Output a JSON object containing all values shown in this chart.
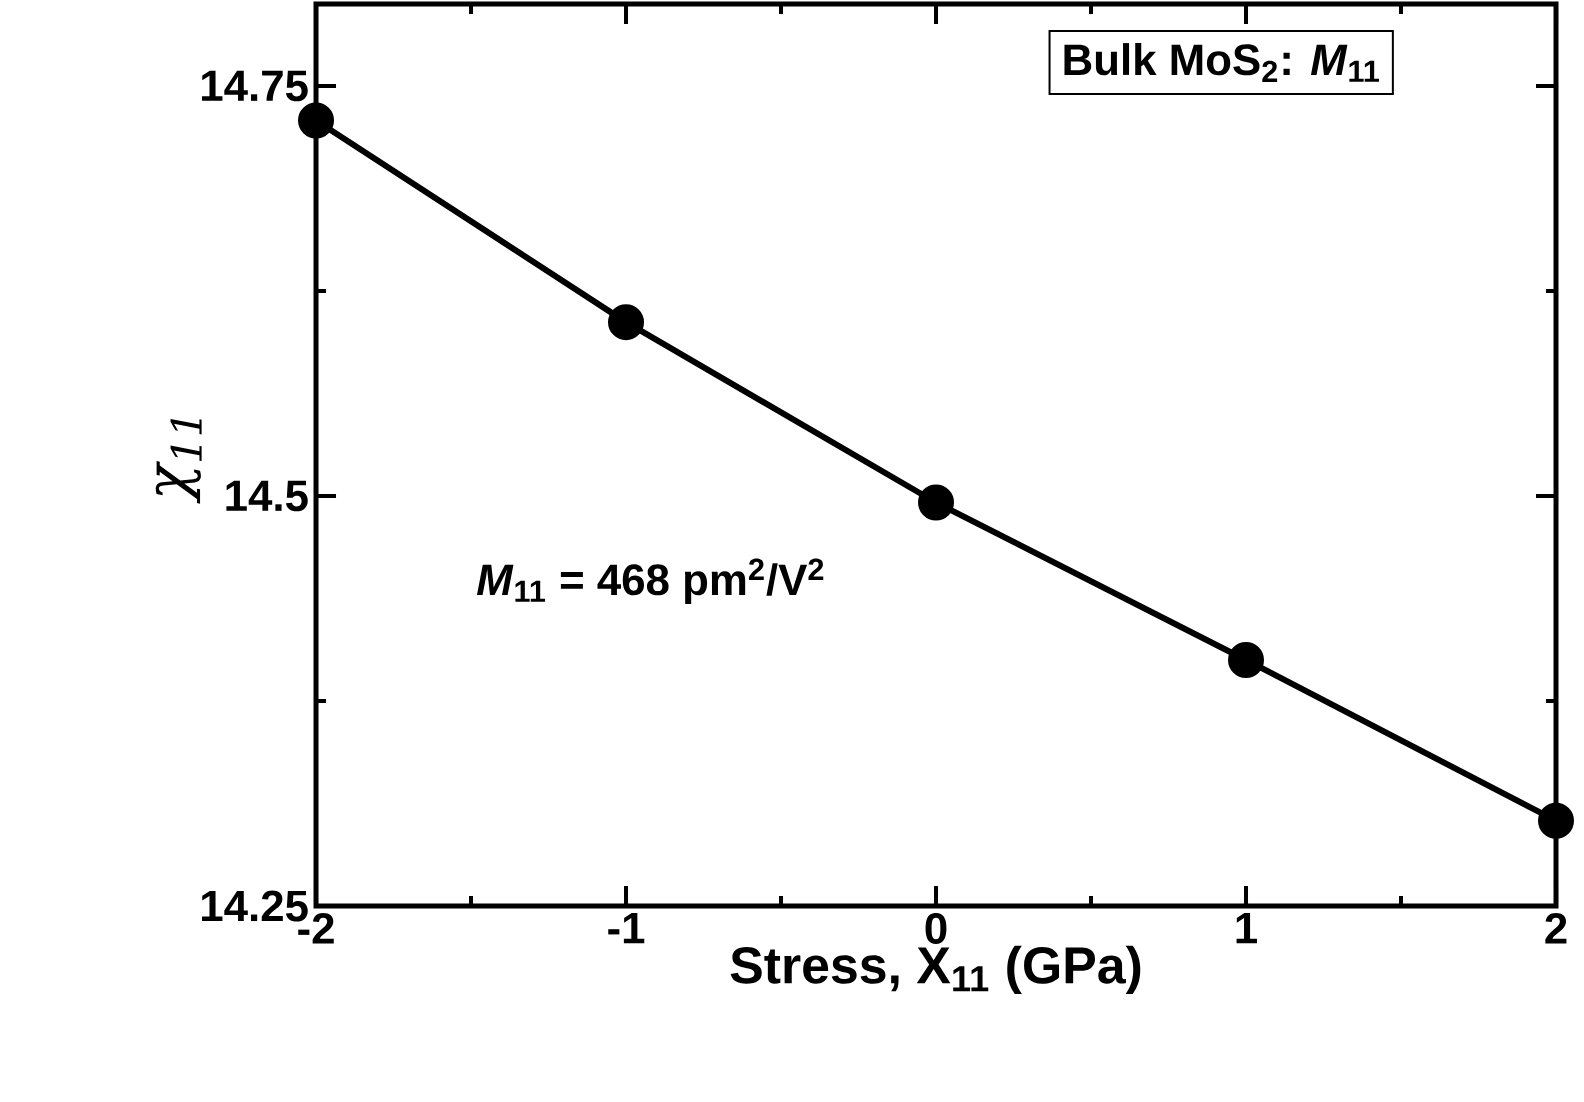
{
  "chart_data": {
    "type": "line",
    "xlabel": "Stress, X$_{11}$ (GPa)",
    "ylabel": "χ$_{11}$",
    "annotations": [
      "Bulk MoS$_{2}$: *M*$_{11}$",
      "*M*$_{11}$ = 468 pm$^{2}$/V$^{2}$"
    ],
    "x": [
      -2,
      -1,
      0,
      1,
      2
    ],
    "series": [
      {
        "color": "#000000",
        "values": [
          14.729,
          14.606,
          14.496,
          14.4,
          14.302
        ]
      }
    ],
    "xlim": [
      -2,
      2
    ],
    "ylim": [
      14.25,
      14.8
    ],
    "xticks": [
      -2,
      -1,
      0,
      1,
      2
    ],
    "yticks": [
      14.25,
      14.5,
      14.75
    ],
    "grid": false,
    "marker": "circle",
    "line_style": "solid"
  }
}
